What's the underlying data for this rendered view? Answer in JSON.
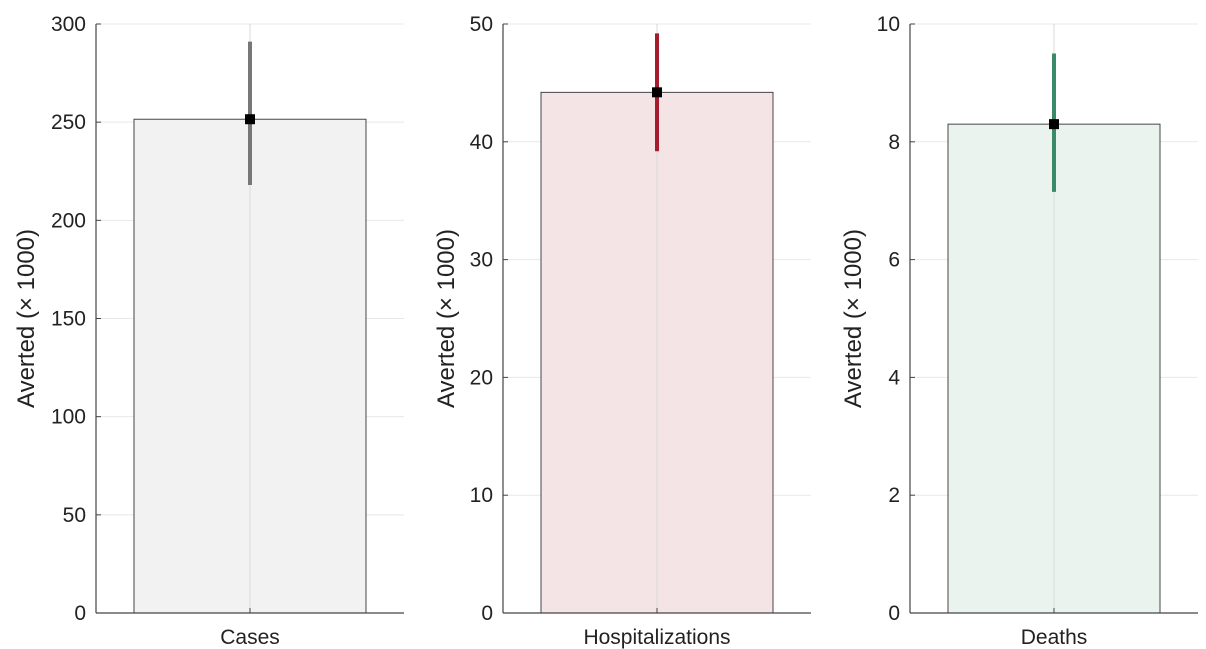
{
  "chart_data": [
    {
      "type": "bar",
      "categories": [
        "Cases"
      ],
      "values": [
        251.5
      ],
      "error_low": [
        218
      ],
      "error_high": [
        291
      ],
      "xlabel": "",
      "ylabel": "Averted (× 1000)",
      "ylim": [
        0,
        300
      ],
      "yticks": [
        0,
        50,
        100,
        150,
        200,
        250,
        300
      ],
      "grid": true,
      "colors": {
        "bar_fill": "#f2f2f2",
        "error_bar": "#777777",
        "marker": "#000000"
      }
    },
    {
      "type": "bar",
      "categories": [
        "Hospitalizations"
      ],
      "values": [
        44.2
      ],
      "error_low": [
        39.2
      ],
      "error_high": [
        49.2
      ],
      "xlabel": "",
      "ylabel": "Averted (× 1000)",
      "ylim": [
        0,
        50
      ],
      "yticks": [
        0,
        10,
        20,
        30,
        40,
        50
      ],
      "grid": true,
      "colors": {
        "bar_fill": "#f5e4e6",
        "error_bar": "#a51c2e",
        "marker": "#000000"
      }
    },
    {
      "type": "bar",
      "categories": [
        "Deaths"
      ],
      "values": [
        8.3
      ],
      "error_low": [
        7.15
      ],
      "error_high": [
        9.5
      ],
      "xlabel": "",
      "ylabel": "Averted (× 1000)",
      "ylim": [
        0,
        10
      ],
      "yticks": [
        0,
        2,
        4,
        6,
        8,
        10
      ],
      "grid": true,
      "colors": {
        "bar_fill": "#ebf3ef",
        "error_bar": "#3a8a6a",
        "marker": "#000000"
      }
    }
  ]
}
